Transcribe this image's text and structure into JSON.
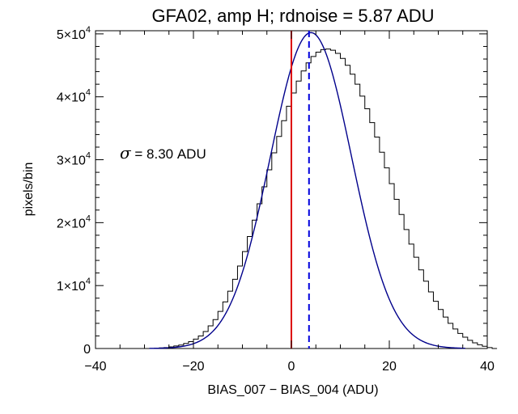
{
  "chart_data": {
    "type": "histogram",
    "title": "GFA02, amp H; rdnoise = 5.87 ADU",
    "xlabel": "BIAS_007 − BIAS_004 (ADU)",
    "ylabel": "pixels/bin",
    "xlim": [
      -40,
      40
    ],
    "ylim": [
      0,
      50500
    ],
    "xticks": [
      {
        "value": -40,
        "label": "−40"
      },
      {
        "value": -20,
        "label": "−20"
      },
      {
        "value": 0,
        "label": "0"
      },
      {
        "value": 20,
        "label": "20"
      },
      {
        "value": 40,
        "label": "40"
      }
    ],
    "yticks": [
      {
        "value": 0,
        "mantissa": "0",
        "exponent": ""
      },
      {
        "value": 10000,
        "mantissa": "1×10",
        "exponent": "4"
      },
      {
        "value": 20000,
        "mantissa": "2×10",
        "exponent": "4"
      },
      {
        "value": 30000,
        "mantissa": "3×10",
        "exponent": "4"
      },
      {
        "value": 40000,
        "mantissa": "4×10",
        "exponent": "4"
      },
      {
        "value": 50000,
        "mantissa": "5×10",
        "exponent": "4"
      }
    ],
    "annotation": {
      "symbol": "σ",
      "text": " = 8.30 ADU"
    },
    "histogram": {
      "bin_width": 1,
      "x_start": -29,
      "counts": [
        0,
        50,
        100,
        150,
        250,
        400,
        550,
        800,
        1100,
        1500,
        2000,
        2700,
        3600,
        4600,
        5900,
        7400,
        9100,
        11000,
        13100,
        15400,
        17800,
        20400,
        23000,
        25700,
        28400,
        31100,
        33700,
        36200,
        38500,
        40600,
        42500,
        44100,
        45400,
        46400,
        47100,
        47500,
        47600,
        47400,
        46900,
        46100,
        45000,
        43600,
        42000,
        40100,
        38100,
        35900,
        33600,
        31200,
        28700,
        26200,
        23700,
        21300,
        18900,
        16600,
        14500,
        12500,
        10700,
        9000,
        7500,
        6200,
        5000,
        4000,
        3100,
        2400,
        1800,
        1300,
        900,
        600,
        350,
        150,
        0
      ],
      "color": "#000000"
    },
    "gaussian_fit": {
      "mean": 4.0,
      "sigma": 8.3,
      "peak": 50200,
      "x_range": [
        -29,
        35.5
      ],
      "color": "#00008b"
    },
    "vlines": [
      {
        "x": 0,
        "style": "solid",
        "color": "#dd0000"
      },
      {
        "x": 3.6,
        "style": "dashed",
        "color": "#0000dd"
      }
    ]
  }
}
